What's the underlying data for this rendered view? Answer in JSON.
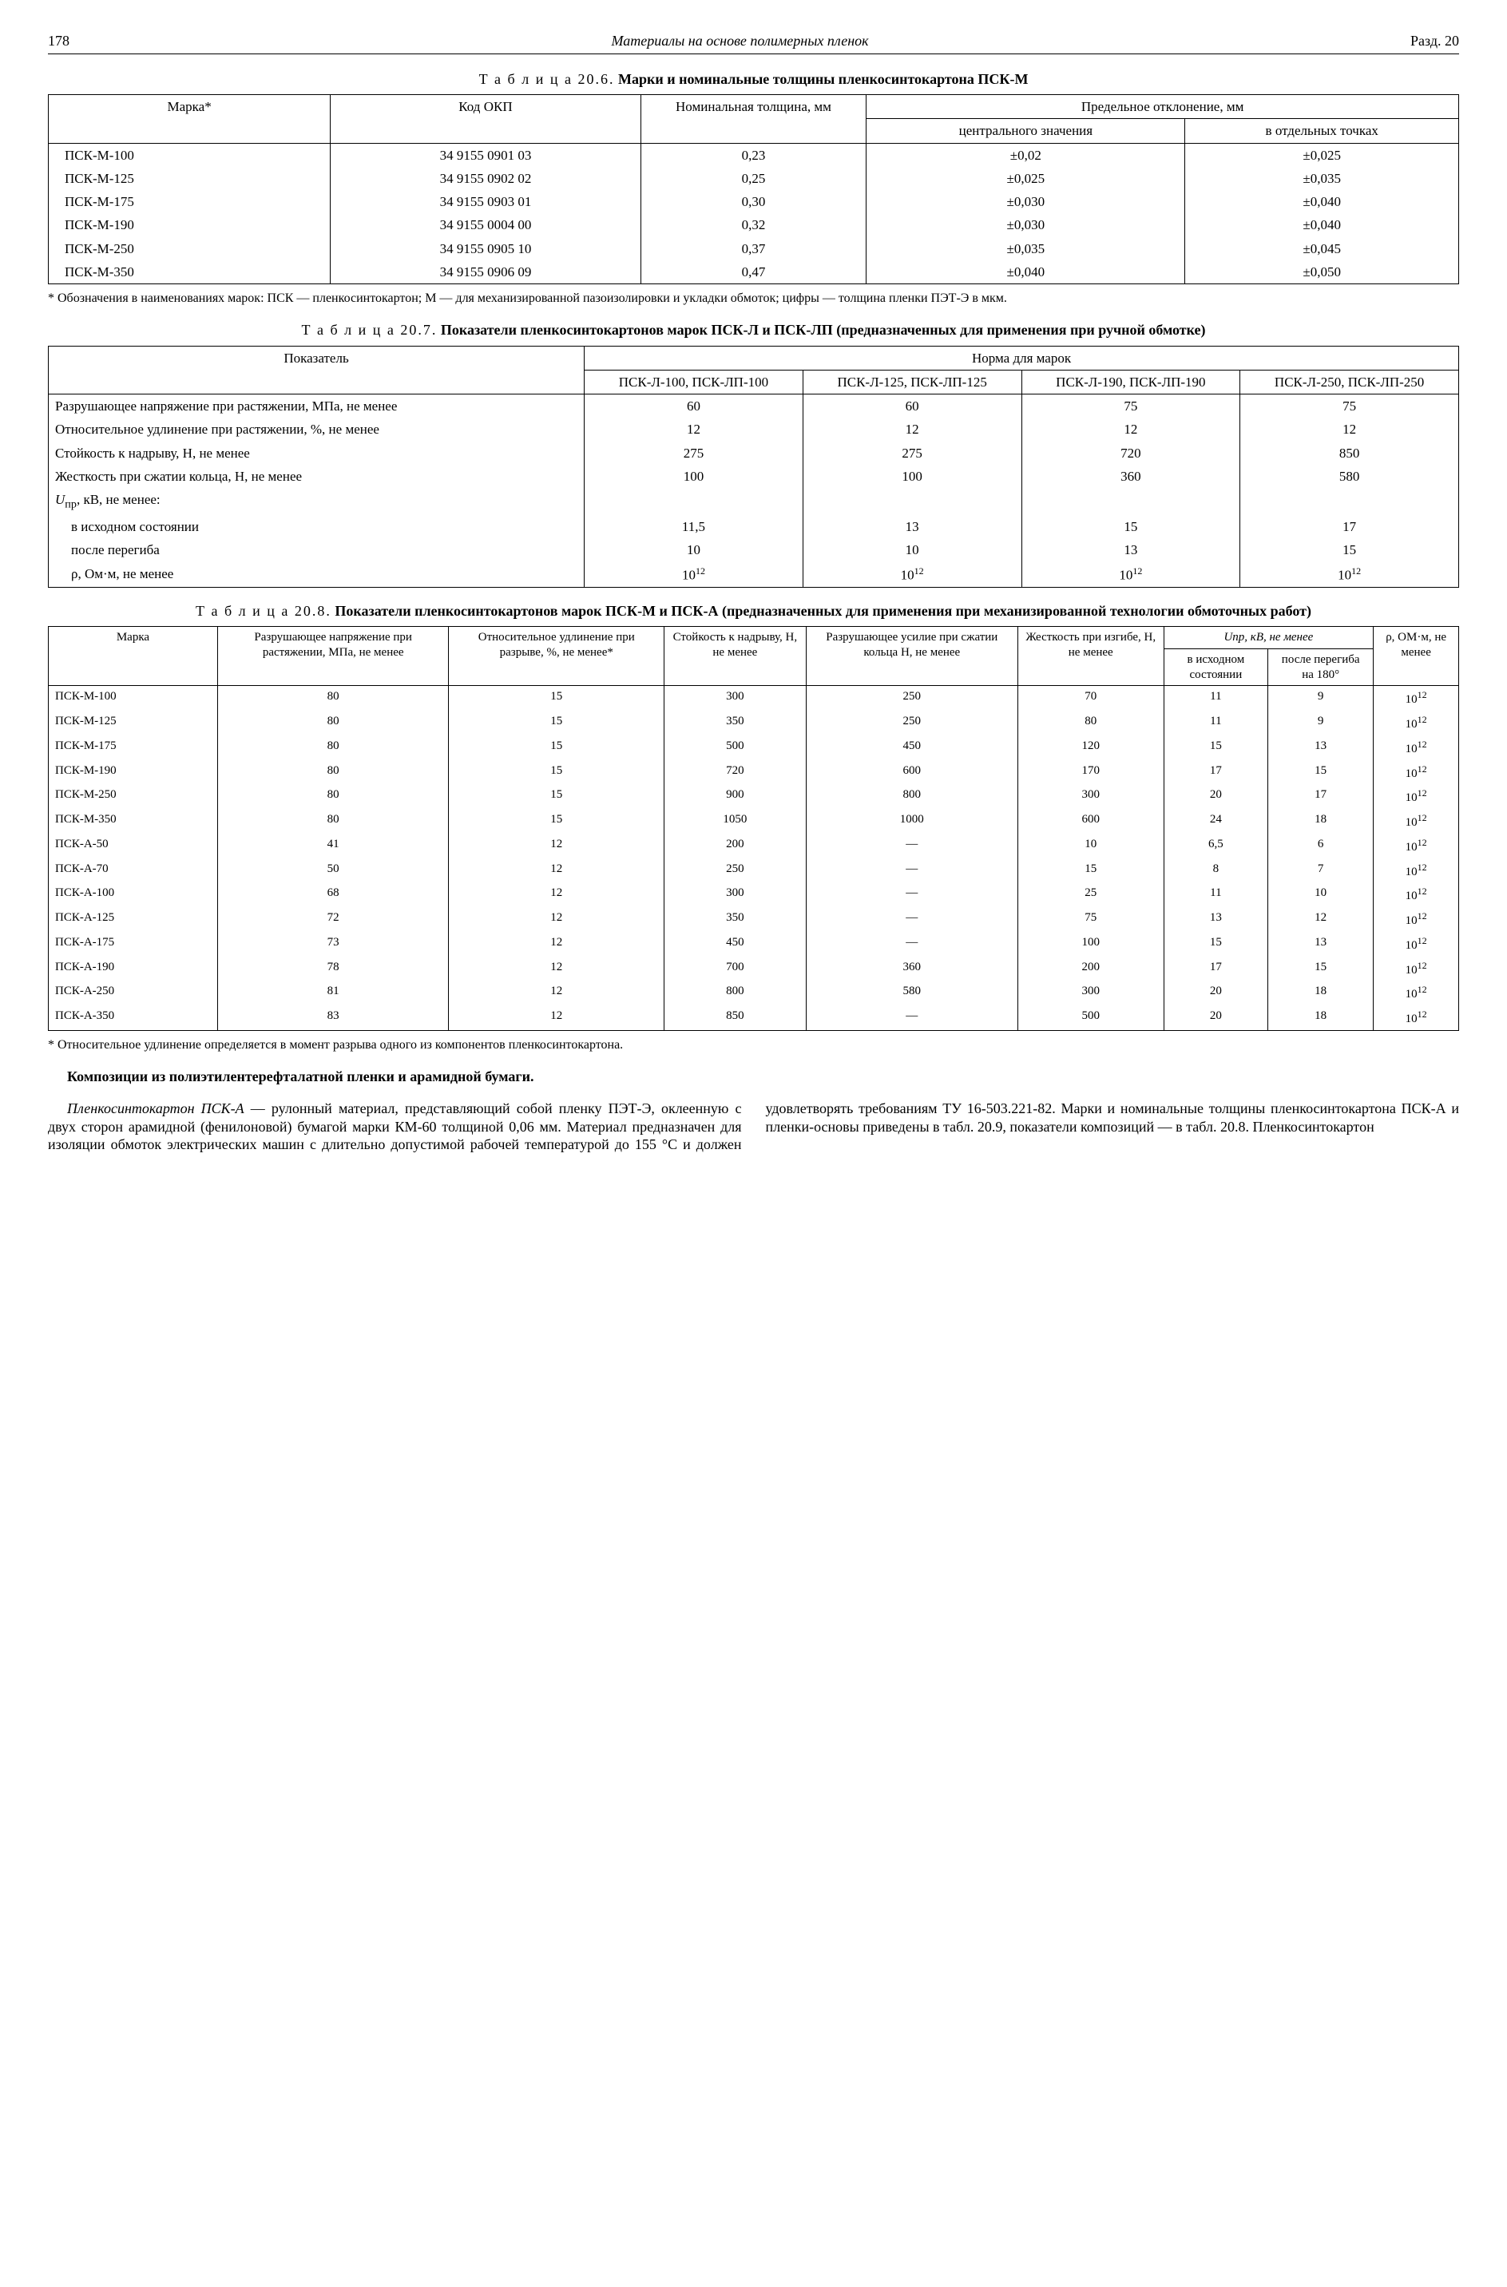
{
  "header": {
    "page_number": "178",
    "running_title": "Материалы на основе полимерных пленок",
    "section": "Разд. 20"
  },
  "table206": {
    "caption_label": "Т а б л и ц а 20.6.",
    "caption_bold": "Марки и номинальные   толщины пленкосинтокартона ПСК-М",
    "head": {
      "marka": "Марка*",
      "okp": "Код ОКП",
      "thickness": "Номинальная толщина, мм",
      "deviation": "Предельное отклонение, мм",
      "dev_central": "центрального значения",
      "dev_points": "в отдельных точках"
    },
    "rows": [
      [
        "ПСК-М-100",
        "34 9155 0901 03",
        "0,23",
        "±0,02",
        "±0,025"
      ],
      [
        "ПСК-М-125",
        "34 9155 0902 02",
        "0,25",
        "±0,025",
        "±0,035"
      ],
      [
        "ПСК-М-175",
        "34 9155 0903 01",
        "0,30",
        "±0,030",
        "±0,040"
      ],
      [
        "ПСК-М-190",
        "34 9155 0004 00",
        "0,32",
        "±0,030",
        "±0,040"
      ],
      [
        "ПСК-М-250",
        "34 9155 0905 10",
        "0,37",
        "±0,035",
        "±0,045"
      ],
      [
        "ПСК-М-350",
        "34 9155 0906 09",
        "0,47",
        "±0,040",
        "±0,050"
      ]
    ],
    "footnote": "* Обозначения в наименованиях марок: ПСК — пленкосинтокартон; М — для механизированной пазоизолировки и укладки обмоток; цифры — толщина пленки ПЭТ-Э в мкм."
  },
  "table207": {
    "caption_label": "Т а б л и ц а 20.7.",
    "caption_bold": "Показатели пленкосинтокартонов марок ПСК-Л и ПСК-ЛП (предназначенных для применения при ручной обмотке)",
    "head": {
      "indicator": "Показатель",
      "norm": "Норма для марок",
      "c1": "ПСК-Л-100, ПСК-ЛП-100",
      "c2": "ПСК-Л-125, ПСК-ЛП-125",
      "c3": "ПСК-Л-190, ПСК-ЛП-190",
      "c4": "ПСК-Л-250, ПСК-ЛП-250"
    },
    "rows": [
      [
        "Разрушающее напряжение при растяжении, МПа, не менее",
        "60",
        "60",
        "75",
        "75"
      ],
      [
        "Относительное удлинение при растяжении, %, не менее",
        "12",
        "12",
        "12",
        "12"
      ],
      [
        "Стойкость к надрыву, Н, не менее",
        "275",
        "275",
        "720",
        "850"
      ],
      [
        "Жесткость при сжатии кольца, Н, не менее",
        "100",
        "100",
        "360",
        "580"
      ]
    ],
    "u_label": "Uпр, кВ, не менее:",
    "u_rows": [
      [
        "в исходном состоянии",
        "11,5",
        "13",
        "15",
        "17"
      ],
      [
        "после перегиба",
        "10",
        "10",
        "13",
        "15"
      ]
    ],
    "rho_label": "ρ, Ом·м, не менее",
    "rho_row": [
      "10¹²",
      "10¹²",
      "10¹²",
      "10¹²"
    ]
  },
  "table208": {
    "caption_label": "Т а б л и ц а 20.8.",
    "caption_bold": "Показатели пленкосинтокартонов марок ПСК-М и ПСК-А (предназначенных для применения при механизированной технологии обмоточных работ)",
    "head": {
      "marka": "Марка",
      "stress": "Разрушающее напряжение при растяжении, МПа, не менее",
      "elong": "Относительное удлинение при разрыве, %, не менее*",
      "tear": "Стойкость к надрыву, Н, не менее",
      "compress": "Разрушающее усилие при сжатии кольца Н, не менее",
      "bend": "Жесткость при изгибе, Н, не менее",
      "upr": "Uпр, кВ, не менее",
      "upr1": "в исходном состоянии",
      "upr2": "после перегиба на 180°",
      "rho": "ρ, ОМ·м, не менее"
    },
    "rows": [
      [
        "ПСК-М-100",
        "80",
        "15",
        "300",
        "250",
        "70",
        "11",
        "9",
        "10¹²"
      ],
      [
        "ПСК-М-125",
        "80",
        "15",
        "350",
        "250",
        "80",
        "11",
        "9",
        "10¹²"
      ],
      [
        "ПСК-М-175",
        "80",
        "15",
        "500",
        "450",
        "120",
        "15",
        "13",
        "10¹²"
      ],
      [
        "ПСК-М-190",
        "80",
        "15",
        "720",
        "600",
        "170",
        "17",
        "15",
        "10¹²"
      ],
      [
        "ПСК-М-250",
        "80",
        "15",
        "900",
        "800",
        "300",
        "20",
        "17",
        "10¹²"
      ],
      [
        "ПСК-М-350",
        "80",
        "15",
        "1050",
        "1000",
        "600",
        "24",
        "18",
        "10¹²"
      ],
      [
        "ПСК-А-50",
        "41",
        "12",
        "200",
        "—",
        "10",
        "6,5",
        "6",
        "10¹²"
      ],
      [
        "ПСК-А-70",
        "50",
        "12",
        "250",
        "—",
        "15",
        "8",
        "7",
        "10¹²"
      ],
      [
        "ПСК-А-100",
        "68",
        "12",
        "300",
        "—",
        "25",
        "11",
        "10",
        "10¹²"
      ],
      [
        "ПСК-А-125",
        "72",
        "12",
        "350",
        "—",
        "75",
        "13",
        "12",
        "10¹²"
      ],
      [
        "ПСК-А-175",
        "73",
        "12",
        "450",
        "—",
        "100",
        "15",
        "13",
        "10¹²"
      ],
      [
        "ПСК-А-190",
        "78",
        "12",
        "700",
        "360",
        "200",
        "17",
        "15",
        "10¹²"
      ],
      [
        "ПСК-А-250",
        "81",
        "12",
        "800",
        "580",
        "300",
        "20",
        "18",
        "10¹²"
      ],
      [
        "ПСК-А-350",
        "83",
        "12",
        "850",
        "—",
        "500",
        "20",
        "18",
        "10¹²"
      ]
    ],
    "footnote": "* Относительное удлинение определяется в момент разрыва одного из компонентов пленкосинтокартона."
  },
  "body_text": {
    "heading": "Композиции из полиэтилентерефталатной пленки и арамидной бумаги.",
    "p1_emph": "Пленкосинтокартон ПСК-А",
    "p1_rest": " — рулонный материал, представляющий собой пленку ПЭТ-Э, оклеенную с двух сторон арамидной (фенилоновой) бумагой марки КМ-60 толщиной 0,06 мм. Материал предназначен для изоляции обмоток электрических машин с длительно допустимой рабочей температурой до 155 °С и должен удовлетворять требованиям ТУ 16-503.221-82. Марки и номинальные толщины пленкосинтокартона ПСК-А и пленки-основы приведены в табл. 20.9, показатели композиций — в табл. 20.8. Пленкосинтокартон"
  }
}
